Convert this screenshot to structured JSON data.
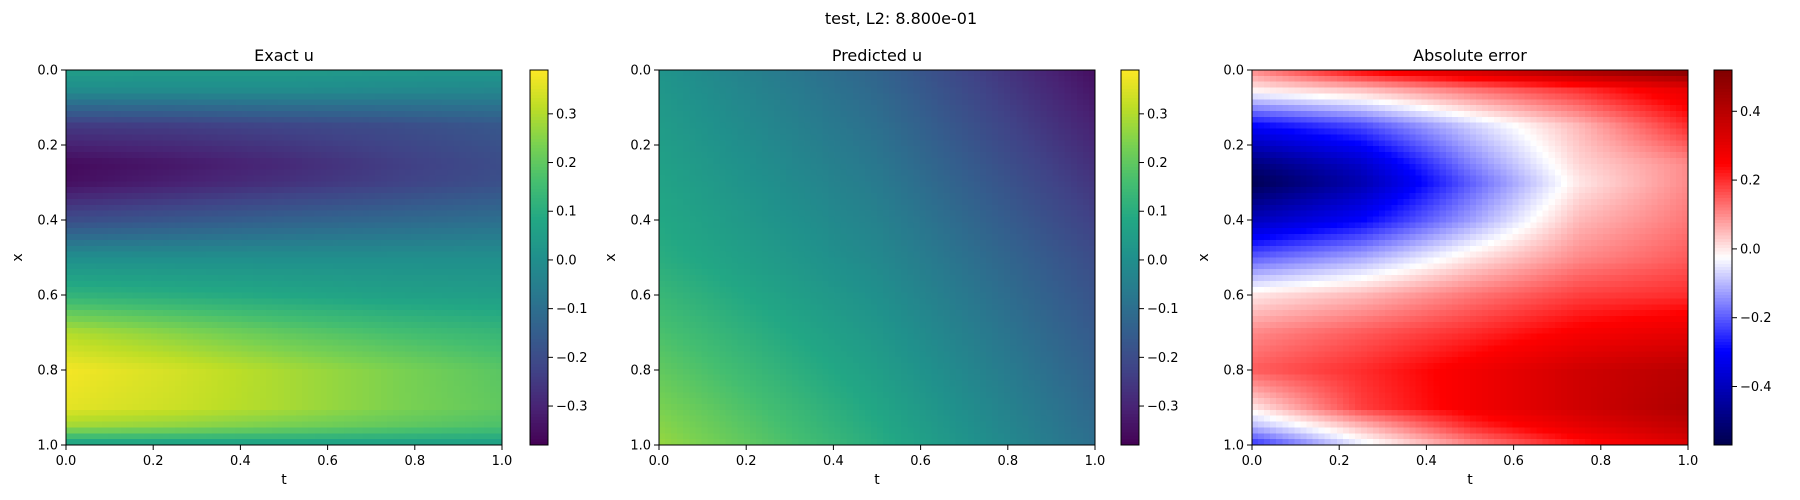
{
  "figure_title": "test, L2: 8.800e-01",
  "chart_data": [
    {
      "type": "heatmap",
      "title": "Exact u",
      "xlabel": "t",
      "ylabel": "x",
      "xlim": [
        0.0,
        1.0
      ],
      "ylim": [
        1.0,
        0.0
      ],
      "x_ticks": [
        "0.0",
        "0.2",
        "0.4",
        "0.6",
        "0.8",
        "1.0"
      ],
      "y_ticks": [
        "0.0",
        "0.2",
        "0.4",
        "0.6",
        "0.8",
        "1.0"
      ],
      "colormap": "viridis",
      "colorbar": {
        "range": [
          -0.38,
          0.39
        ],
        "ticks": [
          0.3,
          0.2,
          0.1,
          0.0,
          -0.1,
          -0.2,
          -0.3
        ],
        "tick_labels": [
          "0.3",
          "0.2",
          "0.1",
          "0.0",
          "−0.1",
          "−0.2",
          "−0.3"
        ]
      },
      "x_samples": [
        0.0,
        0.25,
        0.5,
        0.75,
        1.0
      ],
      "y_samples": [
        0.0,
        0.05,
        0.15,
        0.25,
        0.3,
        0.4,
        0.5,
        0.6,
        0.7,
        0.8,
        0.9,
        0.95,
        1.0
      ],
      "values": [
        [
          0.05,
          0.04,
          0.04,
          0.03,
          0.03
        ],
        [
          0.0,
          0.0,
          0.0,
          -0.01,
          -0.02
        ],
        [
          -0.25,
          -0.24,
          -0.22,
          -0.2,
          -0.17
        ],
        [
          -0.36,
          -0.33,
          -0.29,
          -0.24,
          -0.2
        ],
        [
          -0.35,
          -0.31,
          -0.27,
          -0.23,
          -0.19
        ],
        [
          -0.2,
          -0.17,
          -0.14,
          -0.12,
          -0.1
        ],
        [
          0.0,
          0.0,
          0.0,
          0.0,
          0.0
        ],
        [
          0.12,
          0.1,
          0.08,
          0.06,
          0.05
        ],
        [
          0.3,
          0.25,
          0.2,
          0.16,
          0.13
        ],
        [
          0.38,
          0.34,
          0.29,
          0.24,
          0.19
        ],
        [
          0.36,
          0.33,
          0.29,
          0.24,
          0.2
        ],
        [
          0.28,
          0.26,
          0.23,
          0.2,
          0.17
        ],
        [
          0.05,
          0.05,
          0.05,
          0.05,
          0.05
        ]
      ]
    },
    {
      "type": "heatmap",
      "title": "Predicted u",
      "xlabel": "t",
      "ylabel": "x",
      "xlim": [
        0.0,
        1.0
      ],
      "ylim": [
        1.0,
        0.0
      ],
      "x_ticks": [
        "0.0",
        "0.2",
        "0.4",
        "0.6",
        "0.8",
        "1.0"
      ],
      "y_ticks": [
        "0.0",
        "0.2",
        "0.4",
        "0.6",
        "0.8",
        "1.0"
      ],
      "colormap": "viridis",
      "colorbar": {
        "range": [
          -0.38,
          0.39
        ],
        "ticks": [
          0.3,
          0.2,
          0.1,
          0.0,
          -0.1,
          -0.2,
          -0.3
        ],
        "tick_labels": [
          "0.3",
          "0.2",
          "0.1",
          "0.0",
          "−0.1",
          "−0.2",
          "−0.3"
        ]
      },
      "x_samples": [
        0.0,
        0.5,
        1.0
      ],
      "y_samples": [
        0.0,
        0.5,
        1.0
      ],
      "values": [
        [
          0.02,
          -0.13,
          -0.35
        ],
        [
          0.1,
          -0.02,
          -0.2
        ],
        [
          0.27,
          0.1,
          -0.1
        ]
      ]
    },
    {
      "type": "heatmap",
      "title": "Absolute error",
      "xlabel": "t",
      "ylabel": "x",
      "xlim": [
        0.0,
        1.0
      ],
      "ylim": [
        1.0,
        0.0
      ],
      "x_ticks": [
        "0.0",
        "0.2",
        "0.4",
        "0.6",
        "0.8",
        "1.0"
      ],
      "y_ticks": [
        "0.0",
        "0.2",
        "0.4",
        "0.6",
        "0.8",
        "1.0"
      ],
      "colormap": "seismic",
      "colorbar": {
        "range": [
          -0.57,
          0.52
        ],
        "ticks": [
          0.4,
          0.2,
          0.0,
          -0.2,
          -0.4
        ],
        "tick_labels": [
          "0.4",
          "0.2",
          "0.0",
          "−0.2",
          "−0.4"
        ]
      },
      "x_samples": [
        0.0,
        0.25,
        0.5,
        0.75,
        1.0
      ],
      "y_samples": [
        0.0,
        0.05,
        0.15,
        0.25,
        0.3,
        0.4,
        0.5,
        0.6,
        0.7,
        0.8,
        0.9,
        0.95,
        1.0
      ],
      "values": [
        [
          0.1,
          0.25,
          0.35,
          0.45,
          0.52
        ],
        [
          0.0,
          0.05,
          0.13,
          0.2,
          0.3
        ],
        [
          -0.3,
          -0.22,
          -0.08,
          0.05,
          0.2
        ],
        [
          -0.5,
          -0.38,
          -0.16,
          0.02,
          0.1
        ],
        [
          -0.56,
          -0.42,
          -0.2,
          0.0,
          0.1
        ],
        [
          -0.4,
          -0.3,
          -0.13,
          0.05,
          0.12
        ],
        [
          -0.2,
          -0.12,
          0.0,
          0.1,
          0.15
        ],
        [
          0.0,
          0.05,
          0.12,
          0.18,
          0.2
        ],
        [
          0.1,
          0.15,
          0.2,
          0.26,
          0.3
        ],
        [
          0.15,
          0.2,
          0.27,
          0.35,
          0.4
        ],
        [
          0.0,
          0.18,
          0.27,
          0.35,
          0.42
        ],
        [
          -0.1,
          0.05,
          0.2,
          0.3,
          0.38
        ],
        [
          -0.25,
          -0.05,
          0.1,
          0.22,
          0.32
        ]
      ]
    }
  ]
}
